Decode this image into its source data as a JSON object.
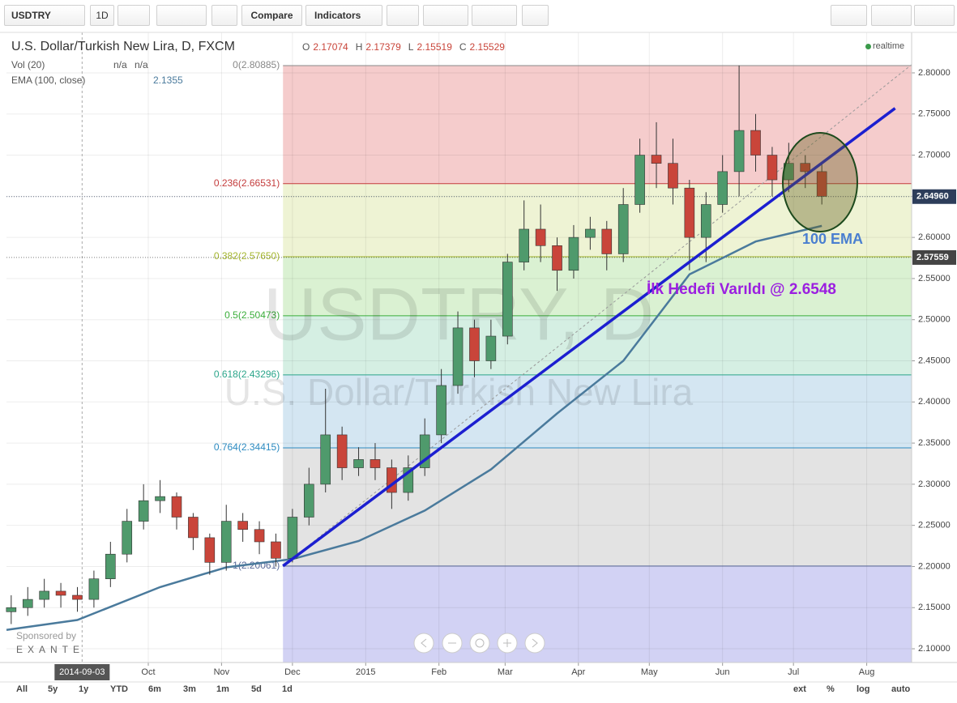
{
  "toolbar": {
    "symbol": "USDTRY",
    "interval": "1D",
    "compare": "Compare",
    "indicators": "Indicators"
  },
  "legend": {
    "title": "U.S. Dollar/Turkish New Lira, D, FXCM",
    "ohlc": [
      {
        "key": "O",
        "value": 2.17074
      },
      {
        "key": "H",
        "value": 2.17379
      },
      {
        "key": "L",
        "value": 2.15519
      },
      {
        "key": "C",
        "value": 2.15529
      }
    ],
    "volume": "Vol (20)",
    "volume_values": [
      "n/a",
      "n/a"
    ],
    "ema": "EMA (100, close)",
    "ema_value": 2.1355,
    "status": "realtime"
  },
  "watermark": {
    "symbol": "USDTRY, D",
    "name": "U.S. Dollar/Turkish New Lira"
  },
  "sponsor": {
    "text": "Sponsored by",
    "brand": "EXANTE"
  },
  "range_buttons": [
    "All",
    "5y",
    "1y",
    "YTD",
    "6m",
    "3m",
    "1m",
    "5d",
    "1d"
  ],
  "scale_buttons": [
    "ext",
    "%",
    "log",
    "auto"
  ],
  "chart_data": {
    "type": "candlestick",
    "x": [
      "2014-08-04",
      "2014-08-11",
      "2014-08-18",
      "2014-08-25",
      "2014-09-01",
      "2014-09-08",
      "2014-09-15",
      "2014-09-22",
      "2014-09-29",
      "2014-10-06",
      "2014-10-13",
      "2014-10-20",
      "2014-10-27",
      "2014-11-03",
      "2014-11-10",
      "2014-11-17",
      "2014-11-24",
      "2014-12-01",
      "2014-12-08",
      "2014-12-15",
      "2014-12-22",
      "2014-12-29",
      "2015-01-05",
      "2015-01-12",
      "2015-01-19",
      "2015-01-26",
      "2015-02-02",
      "2015-02-09",
      "2015-02-16",
      "2015-02-23",
      "2015-03-02",
      "2015-03-09",
      "2015-03-16",
      "2015-03-23",
      "2015-03-30",
      "2015-04-06",
      "2015-04-13",
      "2015-04-20",
      "2015-04-27",
      "2015-05-04",
      "2015-05-11",
      "2015-05-18",
      "2015-05-25",
      "2015-06-01",
      "2015-06-08",
      "2015-06-15",
      "2015-06-22",
      "2015-06-29",
      "2015-07-06",
      "2015-07-13"
    ],
    "open": [
      2.145,
      2.15,
      2.16,
      2.17,
      2.165,
      2.16,
      2.185,
      2.215,
      2.255,
      2.28,
      2.285,
      2.26,
      2.235,
      2.205,
      2.255,
      2.245,
      2.23,
      2.21,
      2.26,
      2.3,
      2.36,
      2.32,
      2.33,
      2.32,
      2.29,
      2.32,
      2.36,
      2.42,
      2.49,
      2.45,
      2.48,
      2.57,
      2.61,
      2.59,
      2.56,
      2.6,
      2.61,
      2.58,
      2.64,
      2.7,
      2.69,
      2.66,
      2.6,
      2.64,
      2.68,
      2.73,
      2.7,
      2.67,
      2.69,
      2.68
    ],
    "high": [
      2.165,
      2.175,
      2.185,
      2.18,
      2.175,
      2.195,
      2.23,
      2.27,
      2.3,
      2.305,
      2.29,
      2.265,
      2.24,
      2.275,
      2.265,
      2.255,
      2.24,
      2.27,
      2.32,
      2.416,
      2.37,
      2.345,
      2.35,
      2.33,
      2.335,
      2.38,
      2.44,
      2.51,
      2.5,
      2.5,
      2.58,
      2.645,
      2.64,
      2.6,
      2.615,
      2.625,
      2.62,
      2.66,
      2.72,
      2.74,
      2.72,
      2.67,
      2.655,
      2.7,
      2.809,
      2.75,
      2.71,
      2.715,
      2.7,
      2.69
    ],
    "low": [
      2.13,
      2.14,
      2.15,
      2.15,
      2.145,
      2.15,
      2.175,
      2.205,
      2.245,
      2.265,
      2.245,
      2.22,
      2.19,
      2.195,
      2.23,
      2.215,
      2.2,
      2.205,
      2.25,
      2.29,
      2.305,
      2.31,
      2.305,
      2.27,
      2.28,
      2.31,
      2.35,
      2.41,
      2.43,
      2.44,
      2.47,
      2.56,
      2.57,
      2.535,
      2.55,
      2.585,
      2.56,
      2.57,
      2.63,
      2.66,
      2.64,
      2.56,
      2.57,
      2.63,
      2.65,
      2.68,
      2.65,
      2.655,
      2.66,
      2.64
    ],
    "close": [
      2.15,
      2.16,
      2.17,
      2.165,
      2.16,
      2.185,
      2.215,
      2.255,
      2.28,
      2.285,
      2.26,
      2.235,
      2.205,
      2.255,
      2.245,
      2.23,
      2.21,
      2.26,
      2.3,
      2.36,
      2.32,
      2.33,
      2.32,
      2.29,
      2.32,
      2.36,
      2.42,
      2.49,
      2.45,
      2.48,
      2.57,
      2.61,
      2.59,
      2.56,
      2.6,
      2.61,
      2.58,
      2.64,
      2.7,
      2.69,
      2.66,
      2.6,
      2.64,
      2.68,
      2.73,
      2.7,
      2.67,
      2.69,
      2.68,
      2.65
    ],
    "up_color": "#4f9a6c",
    "down_color": "#c9453a",
    "ema": {
      "name": "100 EMA",
      "color": "#4a7a9c",
      "x": [
        "2014-08-02",
        "2014-09-01",
        "2014-10-06",
        "2014-11-03",
        "2014-12-01",
        "2014-12-29",
        "2015-01-26",
        "2015-02-23",
        "2015-03-23",
        "2015-04-20",
        "2015-05-18",
        "2015-06-15",
        "2015-07-13"
      ],
      "values": [
        2.123,
        2.135,
        2.175,
        2.199,
        2.209,
        2.231,
        2.268,
        2.318,
        2.386,
        2.45,
        2.555,
        2.595,
        2.614
      ]
    },
    "trend_line": {
      "color": "#1c1fd0",
      "x": [
        "2014-11-27",
        "2015-08-13"
      ],
      "y": [
        2.2006,
        2.757
      ]
    },
    "fib_line": {
      "color": "#999999",
      "x": [
        "2014-11-27",
        "2015-08-20"
      ],
      "y": [
        2.2006,
        2.81
      ]
    },
    "fib_start": "2014-11-27",
    "fib_levels": [
      {
        "value": 2.80885,
        "label": "0(2.80885)",
        "color": "#888888",
        "fill": "#f5cccc"
      },
      {
        "value": 2.66531,
        "label": "0.236(2.66531)",
        "color": "#c43c3c",
        "fill": "#eef3d4"
      },
      {
        "value": 2.5765,
        "label": "0.382(2.57650)",
        "color": "#a3b52c",
        "fill": "#daf1d2"
      },
      {
        "value": 2.50473,
        "label": "0.5(2.50473)",
        "color": "#3aad3a",
        "fill": "#d5efe3"
      },
      {
        "value": 2.43296,
        "label": "0.618(2.43296)",
        "color": "#2ba58a",
        "fill": "#d4e6f2"
      },
      {
        "value": 2.34415,
        "label": "0.764(2.34415)",
        "color": "#2b8ac0",
        "fill": "#e3e3e3"
      },
      {
        "value": 2.20061,
        "label": "1(2.20061)",
        "color": "#5a6a9a",
        "fill": "#d2d2f4"
      }
    ],
    "price_marks": [
      {
        "value": 2.6496,
        "label": "2.64960",
        "color": "#2d3d5a"
      },
      {
        "value": 2.57559,
        "label": "2.57559",
        "color": "#444444"
      }
    ],
    "crosshair_x": {
      "value": "2014-09-03",
      "label": "2014-09-03"
    },
    "annotations": [
      {
        "text": "100 EMA",
        "color": "#4a7fd0"
      },
      {
        "text": "İlk Hedefi Varıldı @ 2.6548",
        "color": "#9b1fe0"
      }
    ],
    "xlim": [
      "2014-08-02",
      "2015-08-20"
    ],
    "ylim": [
      2.0833,
      2.8492
    ],
    "xticks": [
      {
        "value": "2014-10-01",
        "label": "Oct"
      },
      {
        "value": "2014-11-01",
        "label": "Nov"
      },
      {
        "value": "2014-12-01",
        "label": "Dec"
      },
      {
        "value": "2015-01-01",
        "label": "2015"
      },
      {
        "value": "2015-02-01",
        "label": "Feb"
      },
      {
        "value": "2015-03-01",
        "label": "Mar"
      },
      {
        "value": "2015-04-01",
        "label": "Apr"
      },
      {
        "value": "2015-05-01",
        "label": "May"
      },
      {
        "value": "2015-06-01",
        "label": "Jun"
      },
      {
        "value": "2015-07-01",
        "label": "Jul"
      },
      {
        "value": "2015-08-01",
        "label": "Aug"
      }
    ],
    "yticks": [
      {
        "value": 2.1,
        "label": "2.10000"
      },
      {
        "value": 2.15,
        "label": "2.15000"
      },
      {
        "value": 2.2,
        "label": "2.20000"
      },
      {
        "value": 2.25,
        "label": "2.25000"
      },
      {
        "value": 2.3,
        "label": "2.30000"
      },
      {
        "value": 2.35,
        "label": "2.35000"
      },
      {
        "value": 2.4,
        "label": "2.40000"
      },
      {
        "value": 2.45,
        "label": "2.45000"
      },
      {
        "value": 2.5,
        "label": "2.50000"
      },
      {
        "value": 2.55,
        "label": "2.55000"
      },
      {
        "value": 2.6,
        "label": "2.60000"
      },
      {
        "value": 2.65,
        "label": "2.65000"
      },
      {
        "value": 2.7,
        "label": "2.70000"
      },
      {
        "value": 2.75,
        "label": "2.75000"
      },
      {
        "value": 2.8,
        "label": "2.80000"
      }
    ],
    "grid": true
  }
}
